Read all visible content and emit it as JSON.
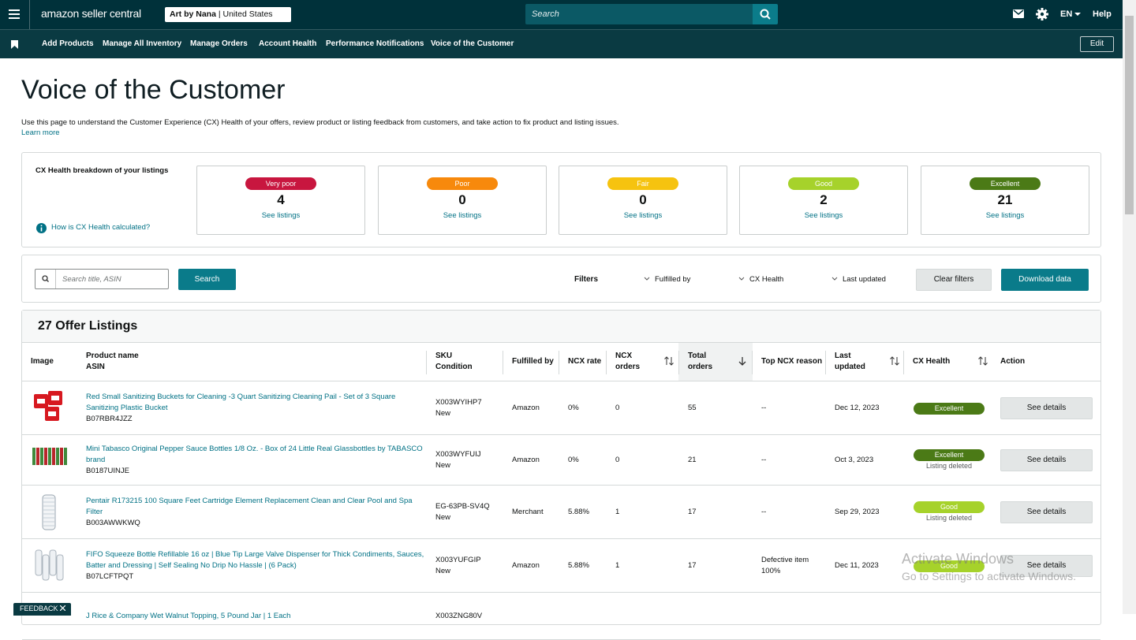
{
  "header": {
    "logo": "amazon seller central",
    "account": "Art by Nana",
    "marketplace": "United States",
    "search_placeholder": "Search",
    "language": "EN",
    "help": "Help"
  },
  "nav": {
    "items": [
      "Add Products",
      "Manage All Inventory",
      "Manage Orders",
      "Account Health",
      "Performance Notifications",
      "Voice of the Customer"
    ],
    "edit": "Edit"
  },
  "page": {
    "title": "Voice of the Customer",
    "description": "Use this page to understand the Customer Experience (CX) Health of your offers, review product or listing feedback from customers, and take action to fix product and listing issues.",
    "learn_more": "Learn more"
  },
  "cx_health": {
    "title": "CX Health breakdown of your listings",
    "help_link": "How is CX Health calculated?",
    "cards": [
      {
        "label": "Very poor",
        "count": 4,
        "link": "See listings",
        "color": "#c8163f"
      },
      {
        "label": "Poor",
        "count": 0,
        "link": "See listings",
        "color": "#f7890c"
      },
      {
        "label": "Fair",
        "count": 0,
        "link": "See listings",
        "color": "#f6c30f"
      },
      {
        "label": "Good",
        "count": 2,
        "link": "See listings",
        "color": "#a6d22b"
      },
      {
        "label": "Excellent",
        "count": 21,
        "link": "See listings",
        "color": "#4b7a16"
      }
    ]
  },
  "search": {
    "placeholder": "Search title, ASIN",
    "button": "Search"
  },
  "filters": {
    "label": "Filters",
    "options": [
      "Fulfilled by",
      "CX Health",
      "Last updated"
    ],
    "clear": "Clear filters",
    "download": "Download data"
  },
  "table": {
    "title": "27 Offer Listings",
    "columns": [
      [
        "Image"
      ],
      [
        "Product name",
        "ASIN"
      ],
      [
        "SKU",
        "Condition"
      ],
      [
        "Fulfilled by"
      ],
      [
        "NCX rate"
      ],
      [
        "NCX",
        "orders"
      ],
      [
        "Total",
        "orders"
      ],
      [
        "Top NCX reason"
      ],
      [
        "Last",
        "updated"
      ],
      [
        "CX Health"
      ],
      [
        "Action"
      ]
    ],
    "rows": [
      {
        "product": "Red Small Sanitizing Buckets for Cleaning -3 Quart Sanitizing Cleaning Pail - Set of 3 Square Sanitizing Plastic Bucket",
        "asin": "B07RBR4JZZ",
        "sku": "X003WYIHP7",
        "condition": "New",
        "fulfilled_by": "Amazon",
        "ncx_rate": "0%",
        "ncx_orders": 0,
        "total_orders": 55,
        "top_ncx_reason": [
          "--"
        ],
        "last_updated": "Dec 12, 2023",
        "cx_health": "Excellent",
        "action": "See details"
      },
      {
        "product": "Mini Tabasco Original Pepper Sauce Bottles 1/8 Oz. - Box of 24 Little Real Glassbottles by TABASCO brand",
        "asin": "B0187UINJE",
        "sku": "X003WYFUIJ",
        "condition": "New",
        "fulfilled_by": "Amazon",
        "ncx_rate": "0%",
        "ncx_orders": 0,
        "total_orders": 21,
        "top_ncx_reason": [
          "--"
        ],
        "last_updated": "Oct 3, 2023",
        "cx_health": "Excellent",
        "note": "Listing deleted",
        "action": "See details"
      },
      {
        "product": "Pentair R173215 100 Square Feet Cartridge Element Replacement Clean and Clear Pool and Spa Filter",
        "asin": "B003AWWKWQ",
        "sku": "EG-63PB-SV4Q",
        "condition": "New",
        "fulfilled_by": "Merchant",
        "ncx_rate": "5.88%",
        "ncx_orders": 1,
        "total_orders": 17,
        "top_ncx_reason": [
          "--"
        ],
        "last_updated": "Sep 29, 2023",
        "cx_health": "Good",
        "note": "Listing deleted",
        "action": "See details"
      },
      {
        "product": "FIFO Squeeze Bottle Refillable 16 oz | Blue Tip Large Valve Dispenser for Thick Condiments, Sauces, Batter and Dressing | Self Sealing No Drip No Hassle | (6 Pack)",
        "asin": "B07LCFTPQT",
        "sku": "X003YUFGIP",
        "condition": "New",
        "fulfilled_by": "Amazon",
        "ncx_rate": "5.88%",
        "ncx_orders": 1,
        "total_orders": 17,
        "top_ncx_reason": [
          "Defective item",
          "100%"
        ],
        "last_updated": "Dec 11, 2023",
        "cx_health": "Good",
        "action": "See details"
      },
      {
        "product": "J Rice & Company Wet Walnut Topping, 5 Pound Jar | 1 Each",
        "sku": "X003ZNG80V"
      }
    ]
  },
  "feedback": "FEEDBACK",
  "watermark": {
    "title": "Activate Windows",
    "subtitle": "Go to Settings to activate Windows."
  }
}
